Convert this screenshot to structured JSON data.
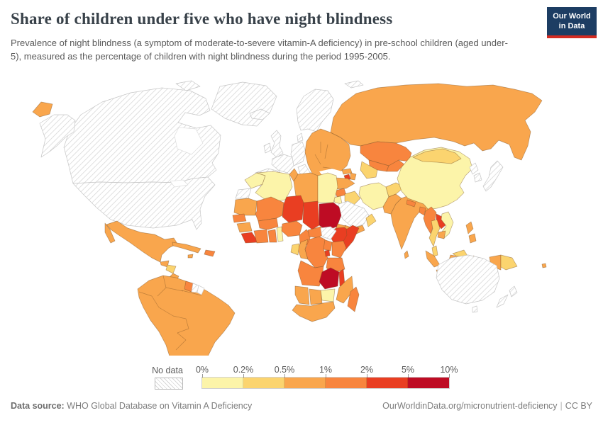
{
  "header": {
    "title": "Share of children under five who have night blindness",
    "subtitle": "Prevalence of night blindness (a symptom of moderate-to-severe vitamin-A deficiency) in pre-school children (aged under-5), measured as the percentage of children with night blindness during the period 1995-2005.",
    "logo": {
      "line1": "Our World",
      "line2": "in Data",
      "bg": "#1d3d63",
      "accent": "#d42b21"
    }
  },
  "legend": {
    "no_data_label": "No data",
    "ticks": [
      "0%",
      "0.2%",
      "0.5%",
      "1%",
      "2%",
      "5%",
      "10%"
    ],
    "bin_colors": [
      "#fcf4a9",
      "#fbd46f",
      "#f9a64d",
      "#f8853e",
      "#e93e22",
      "#be0c24"
    ],
    "border_color": "rgba(122,80,35,0.5)",
    "nodata_border": "#c6c6c6"
  },
  "footer": {
    "source_label": "Data source:",
    "source_text": "WHO Global Database on Vitamin A Deficiency",
    "link": "OurWorldinData.org/micronutrient-deficiency",
    "separator": "|",
    "license": "CC BY"
  },
  "chart_data": {
    "type": "heatmap",
    "subtype": "choropleth-world-map",
    "title": "Share of children under five who have night blindness",
    "unit": "% of children under 5 with night blindness",
    "period": "1995-2005",
    "legend_position": "bottom",
    "bins": [
      {
        "range": "0-0.2%",
        "color": "#fcf4a9"
      },
      {
        "range": "0.2-0.5%",
        "color": "#fbd46f"
      },
      {
        "range": "0.5-1%",
        "color": "#f9a64d"
      },
      {
        "range": "1-2%",
        "color": "#f8853e"
      },
      {
        "range": "2-5%",
        "color": "#e93e22"
      },
      {
        "range": "5-10%",
        "color": "#be0c24"
      },
      {
        "range": "No data",
        "color": "hatched-white"
      }
    ],
    "values_by_range": {
      "5-10%": [
        "Sudan",
        "Zambia"
      ],
      "2-5%": [
        "Niger",
        "Chad",
        "Ethiopia",
        "Somalia",
        "Sierra Leone",
        "Liberia",
        "Armenia",
        "Laos",
        "Rwanda",
        "Burundi",
        "Malawi"
      ],
      "1-2%": [
        "Kazakhstan",
        "Uzbekistan",
        "Kyrgyzstan",
        "Tajikistan",
        "Syria",
        "Nepal",
        "Bangladesh",
        "Myanmar",
        "Guyana",
        "Haiti",
        "Dominican Republic",
        "Senegal",
        "Mali",
        "Burkina Faso",
        "Cote d'Ivoire",
        "Ghana",
        "Nigeria",
        "Cameroon",
        "Central African Republic",
        "DR Congo",
        "Uganda",
        "Kenya",
        "Tanzania",
        "Angola",
        "Madagascar"
      ],
      "0.5-1%": [
        "Russia",
        "Mexico",
        "Cuba",
        "Brazil",
        "Colombia",
        "Venezuela",
        "Peru",
        "Bolivia",
        "Argentina",
        "Chile",
        "Poland",
        "Ukraine",
        "Romania",
        "Turkey",
        "Georgia",
        "Azerbaijan",
        "Libya",
        "Tunisia",
        "Mauritania",
        "Guinea",
        "Eritrea",
        "Congo",
        "Namibia",
        "Botswana",
        "South Africa",
        "Mozambique",
        "Yemen",
        "Pakistan",
        "India",
        "Sri Lanka",
        "Cambodia",
        "Philippines",
        "Indonesia",
        "Fiji"
      ],
      "0.2-0.5%": [
        "Mongolia",
        "Thailand",
        "Malaysia",
        "Turkmenistan",
        "Afghanistan",
        "Iraq",
        "Oman",
        "Gabon",
        "Papua New Guinea",
        "Honduras",
        "Nicaragua"
      ],
      "0-0.2%": [
        "China",
        "Vietnam",
        "Iran",
        "Jordan",
        "Morocco",
        "Algeria",
        "Egypt",
        "Benin",
        "Togo",
        "Zimbabwe"
      ],
      "No data": [
        "United States",
        "Canada",
        "Greenland",
        "Iceland",
        "United Kingdom",
        "Ireland",
        "France",
        "Germany",
        "Spain",
        "Portugal",
        "Italy",
        "Greece",
        "Norway",
        "Sweden",
        "Finland",
        "Denmark",
        "Saudi Arabia",
        "Japan",
        "North Korea",
        "South Korea",
        "Australia",
        "New Zealand",
        "South Sudan",
        "Western Sahara",
        "Suriname"
      ]
    }
  },
  "map": {
    "region_bins": {
      "greenland": "nodata",
      "arctic-islands": "nodata",
      "canada": "nodata",
      "alaska": "nodata",
      "usa": "nodata",
      "iceland": "nodata",
      "uk": "nodata",
      "ireland": "nodata",
      "scandinavia": "nodata",
      "svalbard": "nodata",
      "denmark": "nodata",
      "central-europe": "nodata",
      "france": "nodata",
      "iberia": "nodata",
      "italy": "nodata",
      "greece": "nodata",
      "western-sahara": "nodata",
      "saudi-arabia": "nodata",
      "south-sudan": "nodata",
      "suriname": "nodata",
      "japan": "nodata",
      "north-korea": "nodata",
      "south-korea": "nodata",
      "australia": "nodata",
      "tasmania": "nodata",
      "new-zealand": "nodata",
      "french-guiana": "blank",
      "china": 0,
      "vietnam": 0,
      "iran": 0,
      "jordan": 0,
      "morocco": 0,
      "algeria": 0,
      "egypt": 0,
      "togo-benin": 0,
      "zimbabwe": 0,
      "mongolia": 1,
      "thailand": 1,
      "malaysia": 1,
      "turkmenistan": 1,
      "afghanistan": 1,
      "iraq": 1,
      "oman": 1,
      "gabon": 1,
      "papua-new-guinea": 1,
      "honduras-nicaragua": 1,
      "russia": 2,
      "chukotka": 2,
      "mexico": 2,
      "guatemala": 2,
      "costa-rica-panama": 2,
      "cuba": 2,
      "jamaica": 2,
      "south-america": 2,
      "eastern-europe": 2,
      "turkey": 2,
      "georgia": 2,
      "azerbaijan": 2,
      "yemen": 2,
      "libya": 2,
      "tunisia": 2,
      "mauritania": 2,
      "guinea": 2,
      "eritrea": 2,
      "congo": 2,
      "namibia": 2,
      "botswana": 2,
      "south-africa": 2,
      "mozambique": 2,
      "pakistan": 2,
      "india": 2,
      "sri-lanka": 2,
      "cambodia": 2,
      "philippines": 2,
      "indonesia": 2,
      "papua-indonesia": 2,
      "fiji": 2,
      "kazakhstan": 3,
      "uzbekistan": 3,
      "kyrgyzstan-tajikistan": 3,
      "syria": 3,
      "nepal": 3,
      "bangladesh": 3,
      "myanmar": 3,
      "guyana": 3,
      "hispaniola": 3,
      "senegal": 3,
      "mali": 3,
      "burkina-faso": 3,
      "cote-divoire": 3,
      "ghana": 3,
      "nigeria": 3,
      "cameroon": 3,
      "central-african-republic": 3,
      "dr-congo": 3,
      "uganda": 3,
      "kenya": 3,
      "tanzania": 3,
      "angola": 3,
      "madagascar": 3,
      "niger": 4,
      "chad": 4,
      "ethiopia": 4,
      "somalia": 4,
      "sierra-leone-liberia": 4,
      "armenia": 4,
      "laos": 4,
      "rwanda-burundi": 4,
      "malawi": 4,
      "sudan": 5,
      "zambia": 5
    }
  }
}
